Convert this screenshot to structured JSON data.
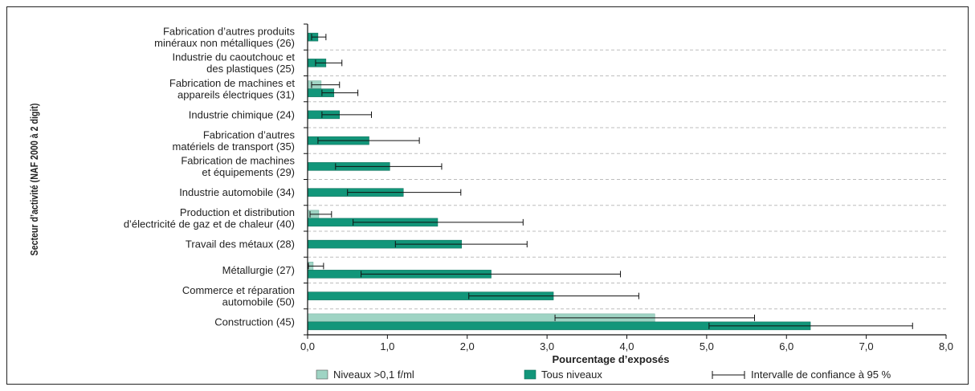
{
  "chart_data": {
    "type": "bar",
    "orientation": "horizontal",
    "xlabel": "Pourcentage d’exposés",
    "ylabel": "Secteur d’activité (NAF 2000 à 2 digit)",
    "xlim": [
      0,
      8
    ],
    "xticks": [
      "0,0",
      "1,0",
      "2,0",
      "3,0",
      "4,0",
      "5,0",
      "6,0",
      "7,0",
      "8,0"
    ],
    "grid": "horizontal dashed",
    "legend_position": "bottom",
    "categories": [
      [
        "Fabrication d’autres produits",
        "minéraux non métalliques (26)"
      ],
      [
        "Industrie du caoutchouc et",
        "des plastiques (25)"
      ],
      [
        "Fabrication de machines et",
        "appareils électriques (31)"
      ],
      [
        "Industrie chimique (24)"
      ],
      [
        "Fabrication d’autres",
        "matériels de transport (35)"
      ],
      [
        "Fabrication de machines",
        "et équipements (29)"
      ],
      [
        "Industrie automobile (34)"
      ],
      [
        "Production et distribution",
        "d’électricité de gaz et de chaleur (40)"
      ],
      [
        "Travail des métaux (28)"
      ],
      [
        "Métallurgie (27)"
      ],
      [
        "Commerce et réparation",
        "automobile (50)"
      ],
      [
        "Construction (45)"
      ]
    ],
    "series": [
      {
        "name": "Niveaux >0,1 f/ml",
        "color": "#9fd4c4",
        "values": [
          null,
          null,
          0.17,
          null,
          null,
          null,
          null,
          0.14,
          null,
          0.07,
          null,
          4.35
        ],
        "ci": [
          null,
          null,
          [
            0.05,
            0.4
          ],
          null,
          null,
          null,
          null,
          [
            0.03,
            0.3
          ],
          null,
          [
            0.01,
            0.2
          ],
          null,
          [
            3.1,
            5.6
          ]
        ]
      },
      {
        "name": "Tous niveaux",
        "color": "#12967a",
        "values": [
          0.13,
          0.23,
          0.33,
          0.4,
          0.77,
          1.03,
          1.2,
          1.63,
          1.93,
          2.3,
          3.08,
          6.3
        ],
        "ci": [
          [
            0.05,
            0.23
          ],
          [
            0.1,
            0.43
          ],
          [
            0.18,
            0.63
          ],
          [
            0.18,
            0.8
          ],
          [
            0.13,
            1.4
          ],
          [
            0.35,
            1.68
          ],
          [
            0.5,
            1.92
          ],
          [
            0.57,
            2.7
          ],
          [
            1.1,
            2.75
          ],
          [
            0.67,
            3.92
          ],
          [
            2.02,
            4.15
          ],
          [
            5.03,
            7.58
          ]
        ]
      }
    ]
  },
  "legend": {
    "niveaux": "Niveaux >0,1 f/ml",
    "tous": "Tous niveaux",
    "ci": "Intervalle de confiance à 95 %"
  }
}
